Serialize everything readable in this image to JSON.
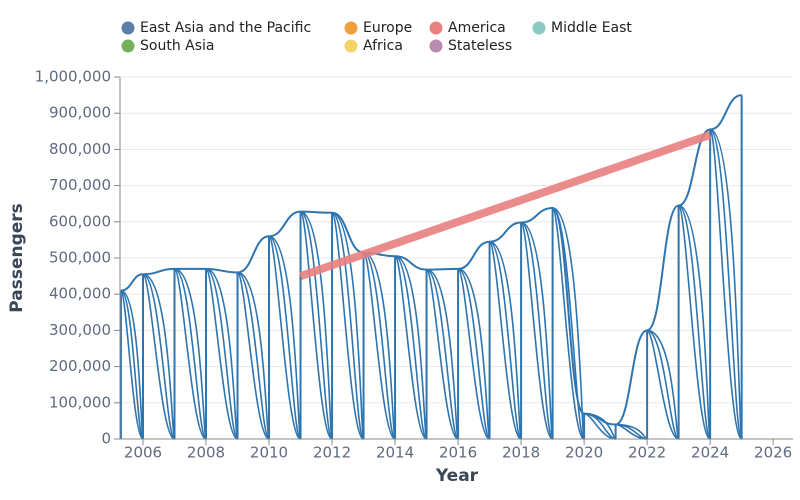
{
  "chart_data": {
    "type": "line",
    "x_label": "Year",
    "y_label": "Passengers",
    "xlim": [
      2005.27,
      2026.63
    ],
    "xticks": [
      2006,
      2008,
      2010,
      2012,
      2014,
      2016,
      2018,
      2020,
      2022,
      2024,
      2026
    ],
    "ylim": [
      0,
      1000000
    ],
    "yticks": [
      0,
      {
        "value": 100000,
        "label": "100,000"
      },
      {
        "value": 200000,
        "label": "200,000"
      },
      {
        "value": 300000,
        "label": "300,000"
      },
      {
        "value": 400000,
        "label": "400,000"
      },
      {
        "value": 500000,
        "label": "500,000"
      },
      {
        "value": 600000,
        "label": "600,000"
      },
      {
        "value": 700000,
        "label": "700,000"
      },
      {
        "value": 800000,
        "label": "800,000"
      },
      {
        "value": 900000,
        "label": "900,000"
      },
      {
        "value": 1000000,
        "label": "1,000,000"
      }
    ],
    "grid": true,
    "legend": "top",
    "series": [
      {
        "name": "East Asia and the Pacific",
        "color": "#5b7fa8",
        "x": [
          2005.3,
          2006,
          2007,
          2008,
          2009,
          2010,
          2011,
          2012,
          2013,
          2014,
          2015,
          2016,
          2017,
          2018,
          2019,
          2020,
          2021,
          2022,
          2023,
          2024,
          2025
        ],
        "values": [
          410000,
          455000,
          470000,
          470000,
          460000,
          560000,
          628000,
          625000,
          515000,
          505000,
          468000,
          470000,
          545000,
          598000,
          638000,
          70000,
          40000,
          300000,
          645000,
          855000,
          950000
        ]
      },
      {
        "name": "South Asia",
        "color": "#72b05f",
        "x": [],
        "values": []
      },
      {
        "name": "Europe",
        "color": "#f0a03a",
        "x": [],
        "values": []
      },
      {
        "name": "Africa",
        "color": "#f5d36b",
        "x": [],
        "values": []
      },
      {
        "name": "America",
        "color": "#e98080",
        "x": [
          2011,
          2024
        ],
        "values": [
          450000,
          840000
        ]
      },
      {
        "name": "Stateless",
        "color": "#b98bb0",
        "x": [],
        "values": []
      },
      {
        "name": "Middle East",
        "color": "#8ec9c4",
        "x": [],
        "values": []
      }
    ]
  }
}
